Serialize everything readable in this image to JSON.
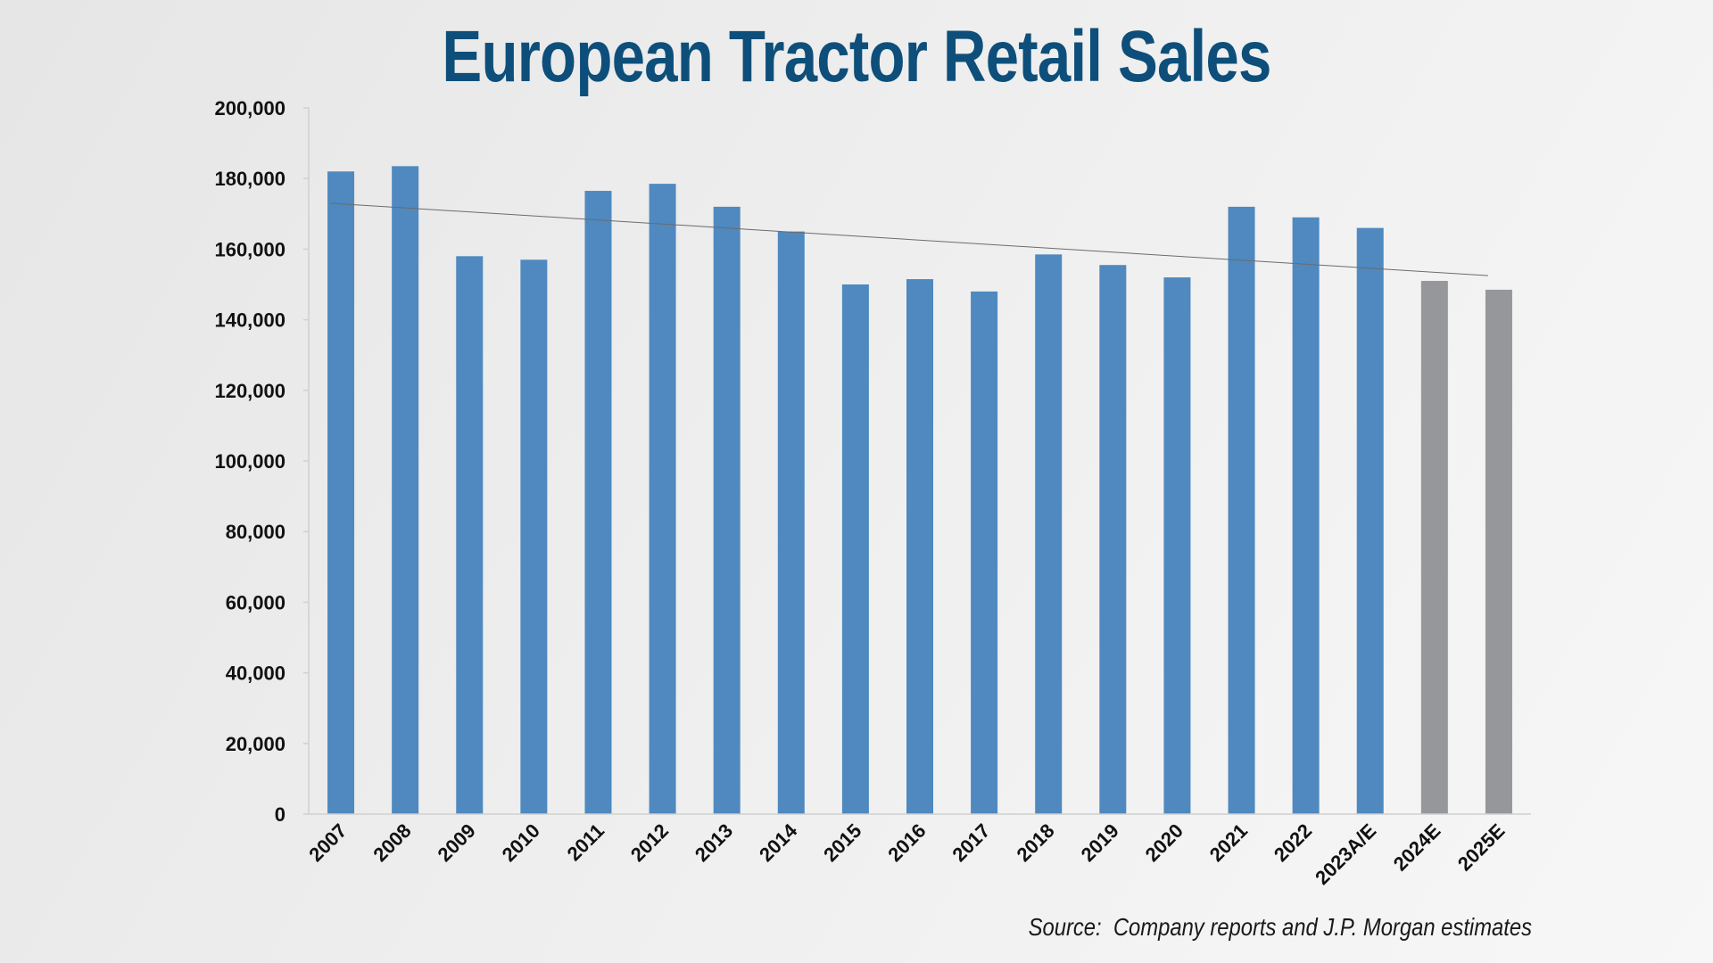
{
  "colors": {
    "title": "#0d4f7a",
    "actual_bar": "#4f89bf",
    "estimate_bar": "#96979a",
    "axis": "#d0d0d0",
    "trendline": "#6b6b6b"
  },
  "source_note": "Source:  Company reports and J.P. Morgan estimates",
  "chart_data": {
    "type": "bar",
    "title": "European Tractor Retail Sales",
    "xlabel": "",
    "ylabel": "",
    "ylim": [
      0,
      200000
    ],
    "yticks": [
      0,
      20000,
      40000,
      60000,
      80000,
      100000,
      120000,
      140000,
      160000,
      180000,
      200000
    ],
    "ytick_labels": [
      "0",
      "20,000",
      "40,000",
      "60,000",
      "80,000",
      "100,000",
      "120,000",
      "140,000",
      "160,000",
      "180,000",
      "200,000"
    ],
    "grid": false,
    "categories": [
      "2007",
      "2008",
      "2009",
      "2010",
      "2011",
      "2012",
      "2013",
      "2014",
      "2015",
      "2016",
      "2017",
      "2018",
      "2019",
      "2020",
      "2021",
      "2022",
      "2023A/E",
      "2024E",
      "2025E"
    ],
    "values": [
      182000,
      183500,
      158000,
      157000,
      176500,
      178500,
      172000,
      165000,
      150000,
      151500,
      148000,
      158500,
      155500,
      152000,
      172000,
      169000,
      166000,
      151000,
      148500
    ],
    "estimate": [
      false,
      false,
      false,
      false,
      false,
      false,
      false,
      false,
      false,
      false,
      false,
      false,
      false,
      false,
      false,
      false,
      false,
      true,
      true
    ],
    "trendline": {
      "type": "linear",
      "start_value": 173000,
      "end_value": 152500
    }
  }
}
